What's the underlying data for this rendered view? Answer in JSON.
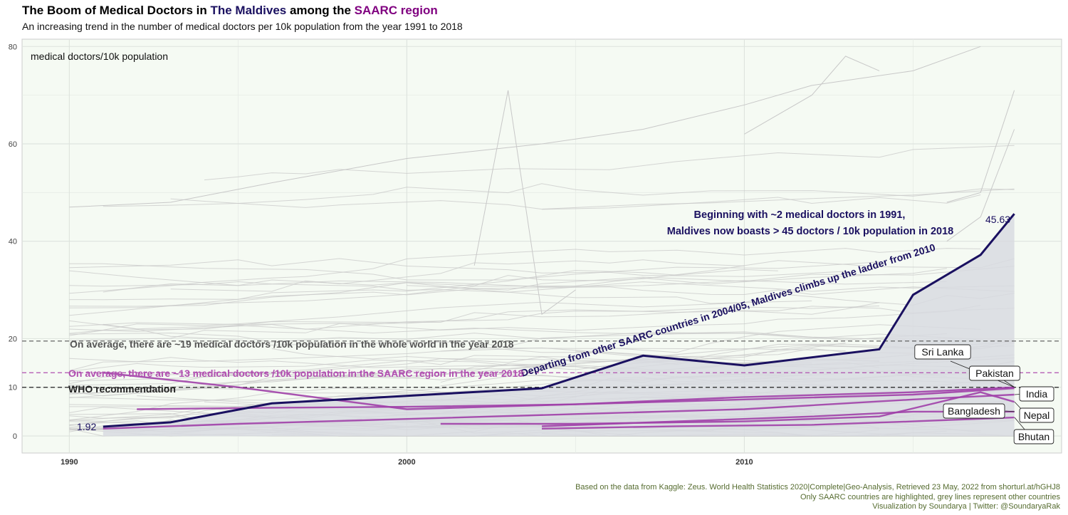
{
  "title": {
    "part1": "The Boom of Medical Doctors in ",
    "highlight1": "The Maldives",
    "part2": " among the ",
    "highlight2": "SAARC region",
    "highlight1_color": "#1a1060",
    "highlight2_color": "#800080"
  },
  "subtitle": "An increasing trend in the number of medical doctors per 10k population from the year 1991 to 2018",
  "caption": [
    "Based on the data from Kaggle: Zeus. World Health Statistics 2020|Complete|Geo-Analysis, Retrieved 23 May, 2022 from shorturl.at/hGHJ8",
    "Only SAARC countries are highlighted, grey lines represent other countries",
    "Visualization by Soundarya | Twitter: @SoundaryaRak"
  ],
  "chart_data": {
    "type": "line",
    "ylabel": "medical doctors/10k population",
    "xlim": [
      1988.6,
      2019.4
    ],
    "ylim": [
      -3.5,
      81.5
    ],
    "x_ticks": [
      1990,
      2000,
      2010
    ],
    "y_ticks": [
      0,
      10,
      20,
      40,
      60,
      80
    ],
    "grid": true,
    "background": "#f5faf3",
    "colors": {
      "maldives": "#1a1060",
      "saarc": "#a040a8",
      "world": "#c8c8c8",
      "area": "#dcdfe4"
    },
    "reference_lines": [
      {
        "y": 19.5,
        "label": "On average, there are ~19 medical doctors /10k population in the whole world in the year 2018",
        "color": "#555555"
      },
      {
        "y": 13,
        "label": "On average, there are ~13 medical doctors /10k population in the SAARC region in the year 2018",
        "color": "#b050b0"
      },
      {
        "y": 10,
        "label": "WHO recommendation",
        "color": "#222222"
      }
    ],
    "highlight_series": {
      "name": "Maldives",
      "x": [
        1991,
        1993,
        1996,
        2004,
        2007,
        2010,
        2014,
        2015,
        2017,
        2018
      ],
      "y": [
        1.92,
        2.8,
        6.7,
        9.8,
        16.5,
        14.5,
        17.8,
        29.0,
        37.2,
        45.63
      ],
      "start_label": "1.92",
      "end_label": "45.63"
    },
    "saarc_series": [
      {
        "name": "Sri Lanka",
        "x": [
          1991,
          1995,
          2000,
          2005,
          2010,
          2015,
          2018
        ],
        "y": [
          13.0,
          10.0,
          5.5,
          6.5,
          8.0,
          9.0,
          10.0
        ]
      },
      {
        "name": "Pakistan",
        "x": [
          1992,
          1996,
          2000,
          2005,
          2010,
          2015,
          2018
        ],
        "y": [
          5.5,
          5.8,
          6.0,
          6.5,
          7.5,
          8.5,
          9.8
        ]
      },
      {
        "name": "India",
        "x": [
          1991,
          1995,
          2000,
          2005,
          2010,
          2015,
          2018
        ],
        "y": [
          1.5,
          2.5,
          3.5,
          4.5,
          5.5,
          7.5,
          8.5
        ]
      },
      {
        "name": "Nepal",
        "x": [
          2001,
          2005,
          2010,
          2014,
          2017,
          2018
        ],
        "y": [
          2.5,
          2.5,
          3.0,
          4.0,
          9.0,
          7.0
        ]
      },
      {
        "name": "Bangladesh",
        "x": [
          2004,
          2008,
          2012,
          2015,
          2018
        ],
        "y": [
          2.0,
          3.0,
          4.0,
          5.0,
          5.0
        ]
      },
      {
        "name": "Bhutan",
        "x": [
          2004,
          2008,
          2012,
          2015,
          2018
        ],
        "y": [
          1.5,
          2.0,
          2.3,
          3.0,
          3.8
        ]
      }
    ],
    "country_labels": [
      "Sri Lanka",
      "Pakistan",
      "India",
      "Nepal",
      "Bangladesh",
      "Bhutan"
    ],
    "annotations": [
      "Beginning with ~2 medical doctors in 1991,",
      "Maldives now boasts > 45 doctors / 10k population in 2018",
      "Departing from other SAARC countries in 2004/05, Maldives climbs up the ladder from 2010"
    ]
  }
}
